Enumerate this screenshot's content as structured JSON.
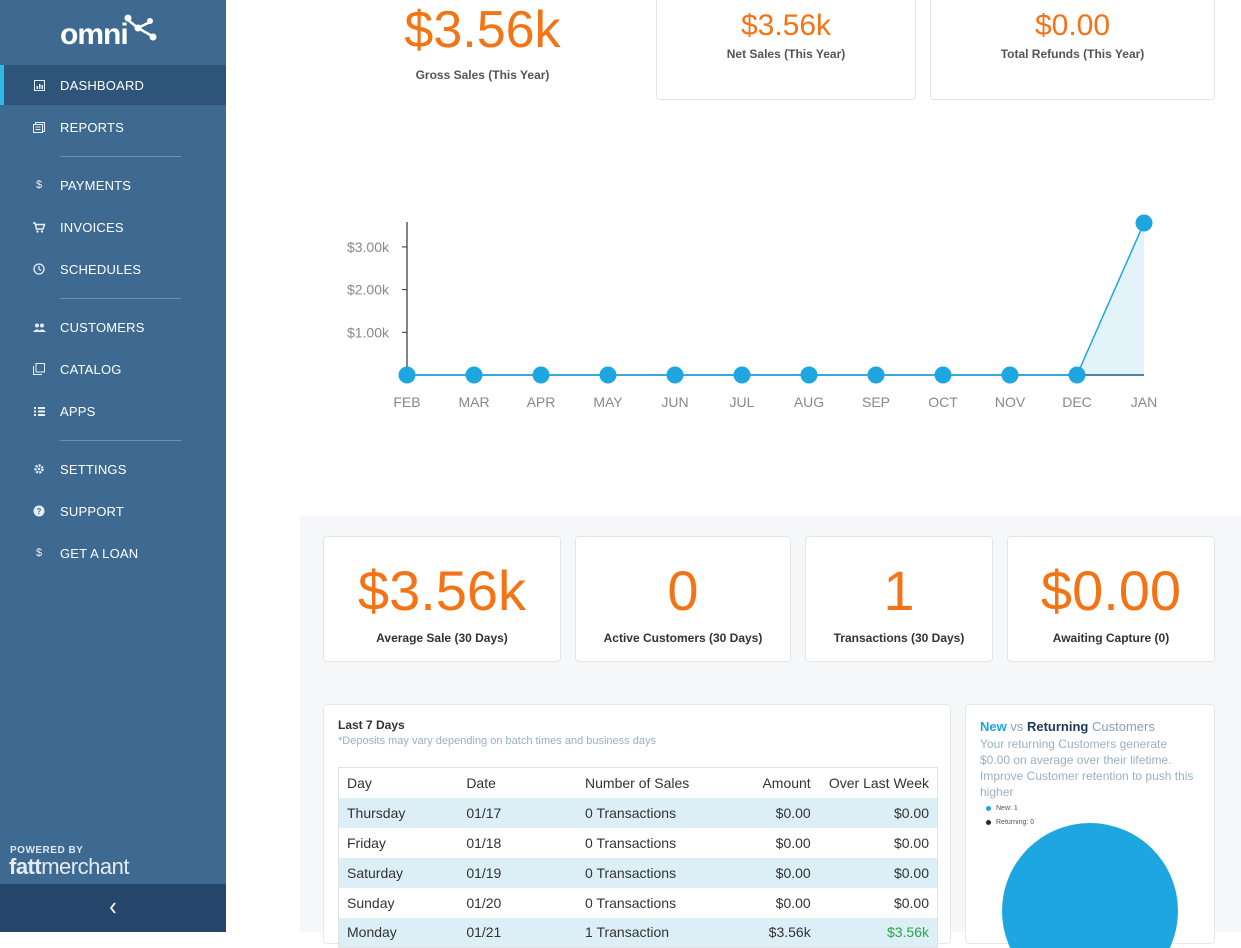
{
  "app": {
    "logo": "omni",
    "powered_by": "POWERED BY",
    "brand_bold": "fatt",
    "brand_light": "merchant"
  },
  "sidebar": {
    "items": [
      {
        "label": "DASHBOARD",
        "icon": "chart-icon",
        "active": true
      },
      {
        "label": "REPORTS",
        "icon": "reports-icon"
      },
      {
        "label": "PAYMENTS",
        "icon": "dollar-icon"
      },
      {
        "label": "INVOICES",
        "icon": "cart-icon"
      },
      {
        "label": "SCHEDULES",
        "icon": "clock-icon"
      },
      {
        "label": "CUSTOMERS",
        "icon": "people-icon"
      },
      {
        "label": "CATALOG",
        "icon": "catalog-icon"
      },
      {
        "label": "APPS",
        "icon": "grid-icon"
      },
      {
        "label": "SETTINGS",
        "icon": "gear-icon"
      },
      {
        "label": "SUPPORT",
        "icon": "help-icon"
      },
      {
        "label": "GET A LOAN",
        "icon": "dollar-icon"
      }
    ],
    "collapse_icon": "chevron-left-icon"
  },
  "top_stats": {
    "gross": {
      "value": "$3.56k",
      "label": "Gross Sales (This Year)"
    },
    "net": {
      "value": "$3.56k",
      "label": "Net Sales (This Year)"
    },
    "refunds": {
      "value": "$0.00",
      "label": "Total Refunds (This Year)"
    }
  },
  "chart_data": {
    "type": "line",
    "categories": [
      "FEB",
      "MAR",
      "APR",
      "MAY",
      "JUN",
      "JUL",
      "AUG",
      "SEP",
      "OCT",
      "NOV",
      "DEC",
      "JAN"
    ],
    "values": [
      0,
      0,
      0,
      0,
      0,
      0,
      0,
      0,
      0,
      0,
      0,
      3560
    ],
    "yticks": [
      1000,
      2000,
      3000
    ],
    "ytick_labels": [
      "$1.00k",
      "$2.00k",
      "$3.00k"
    ],
    "ylim": [
      0,
      3600
    ],
    "area_fill_last_segment": true,
    "line_color": "#1ea6e0",
    "fill_color": "#e3f3fa",
    "grid": false
  },
  "stat_cards": [
    {
      "value": "$3.56k",
      "label": "Average Sale (30 Days)"
    },
    {
      "value": "0",
      "label": "Active Customers (30 Days)"
    },
    {
      "value": "1",
      "label": "Transactions (30 Days)"
    },
    {
      "value": "$0.00",
      "label": "Awaiting Capture (0)"
    }
  ],
  "last7": {
    "title": "Last 7 Days",
    "subtitle": "*Deposits may vary depending on batch times and business days",
    "columns": [
      "Day",
      "Date",
      "Number of Sales",
      "Amount",
      "Over Last Week"
    ],
    "rows": [
      [
        "Thursday",
        "01/17",
        "0 Transactions",
        "$0.00",
        "$0.00"
      ],
      [
        "Friday",
        "01/18",
        "0 Transactions",
        "$0.00",
        "$0.00"
      ],
      [
        "Saturday",
        "01/19",
        "0 Transactions",
        "$0.00",
        "$0.00"
      ],
      [
        "Sunday",
        "01/20",
        "0 Transactions",
        "$0.00",
        "$0.00"
      ],
      [
        "Monday",
        "01/21",
        "1 Transaction",
        "$3.56k",
        "$3.56k"
      ]
    ]
  },
  "nvr": {
    "title_new": "New",
    "title_vs": "vs",
    "title_returning": "Returning",
    "title_customers": "Customers",
    "desc": "Your returning Customers  generate $0.00 on average over their lifetime. Improve Customer retention to push this higher",
    "legend": [
      {
        "label": "New: 1",
        "color": "#1ea6e0"
      },
      {
        "label": "Returning: 0",
        "color": "#1a2a3a"
      }
    ],
    "pie": {
      "new": 1,
      "returning": 0
    }
  },
  "colors": {
    "accent": "#f47315",
    "sidebar": "#3e6a92",
    "highlight": "#2bbbe8"
  }
}
